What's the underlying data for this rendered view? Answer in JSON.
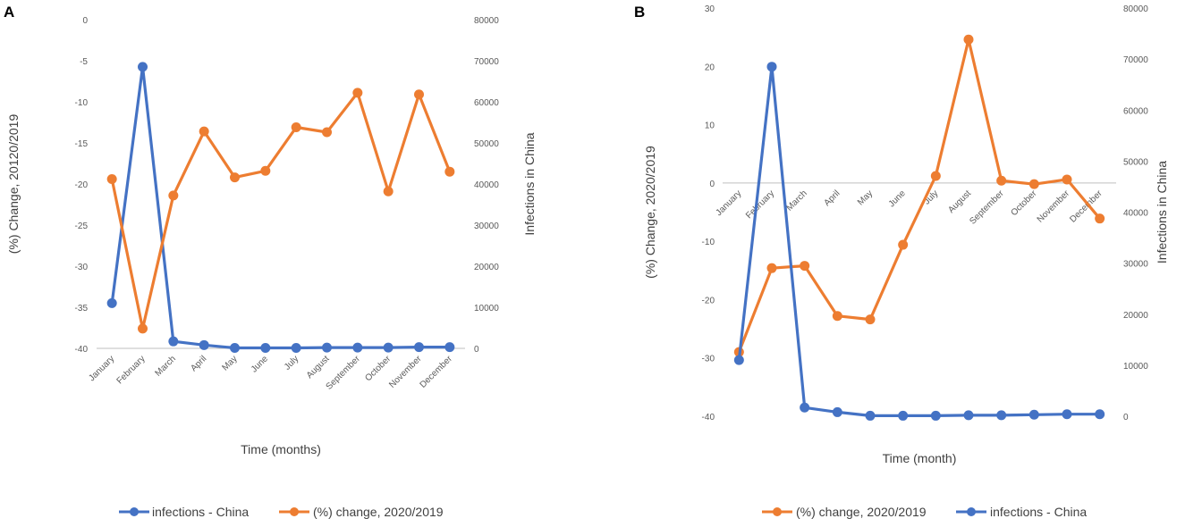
{
  "colors": {
    "infections": "#4472C4",
    "change": "#ED7D31",
    "tick": "#595959",
    "axis": "#BFBFBF"
  },
  "chart_data": [
    {
      "panel": "A",
      "type": "line",
      "title": "",
      "categories": [
        "January",
        "February",
        "March",
        "April",
        "May",
        "June",
        "July",
        "August",
        "September",
        "October",
        "November",
        "December"
      ],
      "xlabel": "Time (months)",
      "ylabel": "(%) Change, 20120/2019",
      "y2label": "Infections in China",
      "ylim": [
        -40,
        0
      ],
      "yticks": [
        0,
        -5,
        -10,
        -15,
        -20,
        -25,
        -30,
        -35,
        -40
      ],
      "y2lim": [
        0,
        80000
      ],
      "y2ticks": [
        80000,
        70000,
        60000,
        50000,
        40000,
        30000,
        20000,
        10000,
        0
      ],
      "legend_position": "bottom",
      "series": [
        {
          "name": "infections - China",
          "axis": "y2",
          "color": "#4472C4",
          "values": [
            11000,
            68500,
            1700,
            800,
            100,
            100,
            100,
            200,
            200,
            200,
            300,
            300
          ]
        },
        {
          "name": "(%) change, 2020/2019",
          "axis": "y",
          "color": "#ED7D31",
          "values": [
            -19.4,
            -37.6,
            -21.4,
            -13.6,
            -19.2,
            -18.4,
            -13.1,
            -13.7,
            -8.9,
            -20.9,
            -9.1,
            -18.5
          ]
        }
      ],
      "legend": [
        "infections - China",
        "(%) change, 2020/2019"
      ]
    },
    {
      "panel": "B",
      "type": "line",
      "title": "",
      "categories": [
        "January",
        "February",
        "March",
        "April",
        "May",
        "June",
        "July",
        "August",
        "September",
        "October",
        "November",
        "December"
      ],
      "xlabel": "Time (month)",
      "ylabel": "(%) Change, 2020/2019",
      "y2label": "Infections in China",
      "ylim": [
        -40,
        30
      ],
      "yticks": [
        30,
        20,
        10,
        0,
        -10,
        -20,
        -30,
        -40
      ],
      "y2lim": [
        0,
        80000
      ],
      "y2ticks": [
        80000,
        70000,
        60000,
        50000,
        40000,
        30000,
        20000,
        10000,
        0
      ],
      "legend_position": "bottom",
      "series": [
        {
          "name": "(%) change, 2020/2019",
          "axis": "y",
          "color": "#ED7D31",
          "values": [
            -29.0,
            -14.6,
            -14.2,
            -22.8,
            -23.4,
            -10.6,
            1.2,
            24.6,
            0.4,
            -0.2,
            0.6,
            -6.1
          ]
        },
        {
          "name": "infections - China",
          "axis": "y2",
          "color": "#4472C4",
          "values": [
            11000,
            68500,
            1700,
            800,
            100,
            100,
            100,
            200,
            200,
            300,
            400,
            400
          ]
        }
      ],
      "legend": [
        "(%) change, 2020/2019",
        "infections - China"
      ]
    }
  ]
}
